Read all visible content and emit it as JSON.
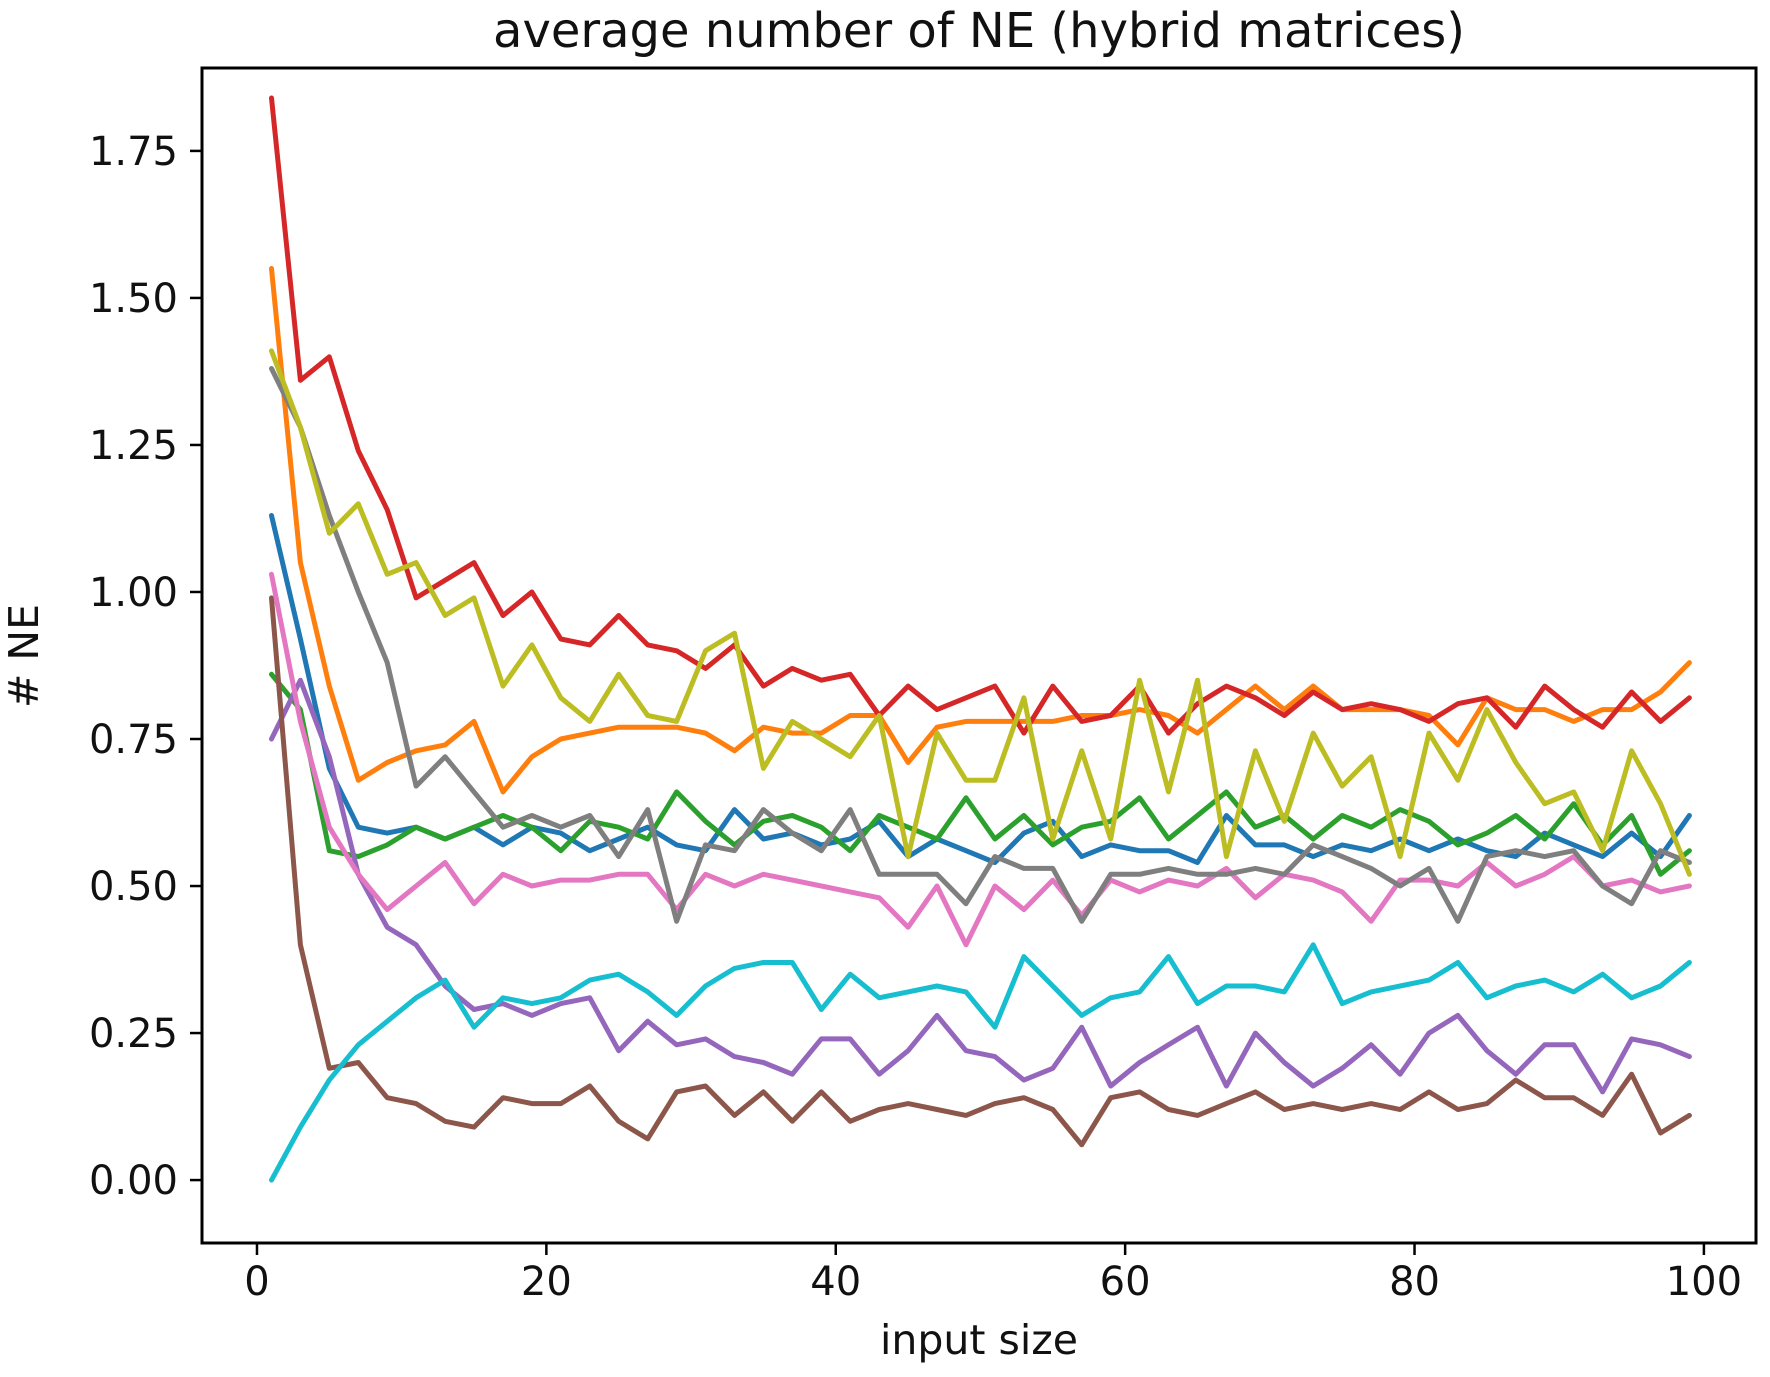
{
  "figure": {
    "title": "average number of NE (hybrid matrices)",
    "xlabel": "input size",
    "ylabel": "# NE"
  },
  "chart_data": {
    "type": "line",
    "title": "average number of NE (hybrid matrices)",
    "xlabel": "input size",
    "ylabel": "# NE",
    "grid": false,
    "legend": "none",
    "background_color": "#ffffff",
    "axis_color": "#000000",
    "xlim": [
      -3.8,
      103.6
    ],
    "ylim": [
      -0.107,
      1.891
    ],
    "xticks": [
      0,
      20,
      40,
      60,
      80,
      100
    ],
    "xtick_labels": [
      "0",
      "20",
      "40",
      "60",
      "80",
      "100"
    ],
    "yticks": [
      0.0,
      0.25,
      0.5,
      0.75,
      1.0,
      1.25,
      1.5,
      1.75
    ],
    "ytick_labels": [
      "0.00",
      "0.25",
      "0.50",
      "0.75",
      "1.00",
      "1.25",
      "1.50",
      "1.75"
    ],
    "x": [
      1,
      3,
      5,
      7,
      9,
      11,
      13,
      15,
      17,
      19,
      21,
      23,
      25,
      27,
      29,
      31,
      33,
      35,
      37,
      39,
      41,
      43,
      45,
      47,
      49,
      51,
      53,
      55,
      57,
      59,
      61,
      63,
      65,
      67,
      69,
      71,
      73,
      75,
      77,
      79,
      81,
      83,
      85,
      87,
      89,
      91,
      93,
      95,
      97,
      99
    ],
    "series": [
      {
        "name": "series-1-blue",
        "color": "#1f77b4",
        "values": [
          1.13,
          0.92,
          0.7,
          0.6,
          0.59,
          0.6,
          0.58,
          0.6,
          0.57,
          0.6,
          0.59,
          0.56,
          0.58,
          0.6,
          0.57,
          0.56,
          0.63,
          0.58,
          0.59,
          0.57,
          0.58,
          0.61,
          0.55,
          0.58,
          0.56,
          0.54,
          0.59,
          0.61,
          0.55,
          0.57,
          0.56,
          0.56,
          0.54,
          0.62,
          0.57,
          0.57,
          0.55,
          0.57,
          0.56,
          0.58,
          0.56,
          0.58,
          0.56,
          0.55,
          0.59,
          0.57,
          0.55,
          0.59,
          0.55,
          0.62
        ]
      },
      {
        "name": "series-2-orange",
        "color": "#ff7f0e",
        "values": [
          1.55,
          1.05,
          0.84,
          0.68,
          0.71,
          0.73,
          0.74,
          0.78,
          0.66,
          0.72,
          0.75,
          0.76,
          0.77,
          0.77,
          0.77,
          0.76,
          0.73,
          0.77,
          0.76,
          0.76,
          0.79,
          0.79,
          0.71,
          0.77,
          0.78,
          0.78,
          0.78,
          0.78,
          0.79,
          0.79,
          0.8,
          0.79,
          0.76,
          0.8,
          0.84,
          0.8,
          0.84,
          0.8,
          0.8,
          0.8,
          0.79,
          0.74,
          0.82,
          0.8,
          0.8,
          0.78,
          0.8,
          0.8,
          0.83,
          0.88
        ]
      },
      {
        "name": "series-3-green",
        "color": "#2ca02c",
        "values": [
          0.86,
          0.8,
          0.56,
          0.55,
          0.57,
          0.6,
          0.58,
          0.6,
          0.62,
          0.6,
          0.56,
          0.61,
          0.6,
          0.58,
          0.66,
          0.61,
          0.57,
          0.61,
          0.62,
          0.6,
          0.56,
          0.62,
          0.6,
          0.58,
          0.65,
          0.58,
          0.62,
          0.57,
          0.6,
          0.61,
          0.65,
          0.58,
          0.62,
          0.66,
          0.6,
          0.62,
          0.58,
          0.62,
          0.6,
          0.63,
          0.61,
          0.57,
          0.59,
          0.62,
          0.58,
          0.64,
          0.57,
          0.62,
          0.52,
          0.56
        ]
      },
      {
        "name": "series-4-red",
        "color": "#d62728",
        "values": [
          1.84,
          1.36,
          1.4,
          1.24,
          1.14,
          0.99,
          1.02,
          1.05,
          0.96,
          1.0,
          0.92,
          0.91,
          0.96,
          0.91,
          0.9,
          0.87,
          0.91,
          0.84,
          0.87,
          0.85,
          0.86,
          0.79,
          0.84,
          0.8,
          0.82,
          0.84,
          0.76,
          0.84,
          0.78,
          0.79,
          0.84,
          0.76,
          0.81,
          0.84,
          0.82,
          0.79,
          0.83,
          0.8,
          0.81,
          0.8,
          0.78,
          0.81,
          0.82,
          0.77,
          0.84,
          0.8,
          0.77,
          0.83,
          0.78,
          0.82
        ]
      },
      {
        "name": "series-5-purple",
        "color": "#9467bd",
        "values": [
          0.75,
          0.85,
          0.72,
          0.52,
          0.43,
          0.4,
          0.33,
          0.29,
          0.3,
          0.28,
          0.3,
          0.31,
          0.22,
          0.27,
          0.23,
          0.24,
          0.21,
          0.2,
          0.18,
          0.24,
          0.24,
          0.18,
          0.22,
          0.28,
          0.22,
          0.21,
          0.17,
          0.19,
          0.26,
          0.16,
          0.2,
          0.23,
          0.26,
          0.16,
          0.25,
          0.2,
          0.16,
          0.19,
          0.23,
          0.18,
          0.25,
          0.28,
          0.22,
          0.18,
          0.23,
          0.23,
          0.15,
          0.24,
          0.23,
          0.21
        ]
      },
      {
        "name": "series-6-brown",
        "color": "#8c564b",
        "values": [
          0.99,
          0.4,
          0.19,
          0.2,
          0.14,
          0.13,
          0.1,
          0.09,
          0.14,
          0.13,
          0.13,
          0.16,
          0.1,
          0.07,
          0.15,
          0.16,
          0.11,
          0.15,
          0.1,
          0.15,
          0.1,
          0.12,
          0.13,
          0.12,
          0.11,
          0.13,
          0.14,
          0.12,
          0.06,
          0.14,
          0.15,
          0.12,
          0.11,
          0.13,
          0.15,
          0.12,
          0.13,
          0.12,
          0.13,
          0.12,
          0.15,
          0.12,
          0.13,
          0.17,
          0.14,
          0.14,
          0.11,
          0.18,
          0.08,
          0.11
        ]
      },
      {
        "name": "series-7-pink",
        "color": "#e377c2",
        "values": [
          1.03,
          0.78,
          0.6,
          0.52,
          0.46,
          0.5,
          0.54,
          0.47,
          0.52,
          0.5,
          0.51,
          0.51,
          0.52,
          0.52,
          0.46,
          0.52,
          0.5,
          0.52,
          0.51,
          0.5,
          0.49,
          0.48,
          0.43,
          0.5,
          0.4,
          0.5,
          0.46,
          0.51,
          0.45,
          0.51,
          0.49,
          0.51,
          0.5,
          0.53,
          0.48,
          0.52,
          0.51,
          0.49,
          0.44,
          0.51,
          0.51,
          0.5,
          0.54,
          0.5,
          0.52,
          0.55,
          0.5,
          0.51,
          0.49,
          0.5
        ]
      },
      {
        "name": "series-8-gray",
        "color": "#7f7f7f",
        "values": [
          1.38,
          1.28,
          1.13,
          1.0,
          0.88,
          0.67,
          0.72,
          0.66,
          0.6,
          0.62,
          0.6,
          0.62,
          0.55,
          0.63,
          0.44,
          0.57,
          0.56,
          0.63,
          0.59,
          0.56,
          0.63,
          0.52,
          0.52,
          0.52,
          0.47,
          0.55,
          0.53,
          0.53,
          0.44,
          0.52,
          0.52,
          0.53,
          0.52,
          0.52,
          0.53,
          0.52,
          0.57,
          0.55,
          0.53,
          0.5,
          0.53,
          0.44,
          0.55,
          0.56,
          0.55,
          0.56,
          0.5,
          0.47,
          0.56,
          0.54
        ]
      },
      {
        "name": "series-9-olive",
        "color": "#bcbd22",
        "values": [
          1.41,
          1.28,
          1.1,
          1.15,
          1.03,
          1.05,
          0.96,
          0.99,
          0.84,
          0.91,
          0.82,
          0.78,
          0.86,
          0.79,
          0.78,
          0.9,
          0.93,
          0.7,
          0.78,
          0.75,
          0.72,
          0.79,
          0.55,
          0.76,
          0.68,
          0.68,
          0.82,
          0.58,
          0.73,
          0.58,
          0.85,
          0.66,
          0.85,
          0.55,
          0.73,
          0.61,
          0.76,
          0.67,
          0.72,
          0.55,
          0.76,
          0.68,
          0.8,
          0.71,
          0.64,
          0.66,
          0.56,
          0.73,
          0.64,
          0.52
        ]
      },
      {
        "name": "series-10-cyan",
        "color": "#17becf",
        "values": [
          0.0,
          0.09,
          0.17,
          0.23,
          0.27,
          0.31,
          0.34,
          0.26,
          0.31,
          0.3,
          0.31,
          0.34,
          0.35,
          0.32,
          0.28,
          0.33,
          0.36,
          0.37,
          0.37,
          0.29,
          0.35,
          0.31,
          0.32,
          0.33,
          0.32,
          0.26,
          0.38,
          0.33,
          0.28,
          0.31,
          0.32,
          0.38,
          0.3,
          0.33,
          0.33,
          0.32,
          0.4,
          0.3,
          0.32,
          0.33,
          0.34,
          0.37,
          0.31,
          0.33,
          0.34,
          0.32,
          0.35,
          0.31,
          0.33,
          0.37
        ]
      }
    ]
  }
}
